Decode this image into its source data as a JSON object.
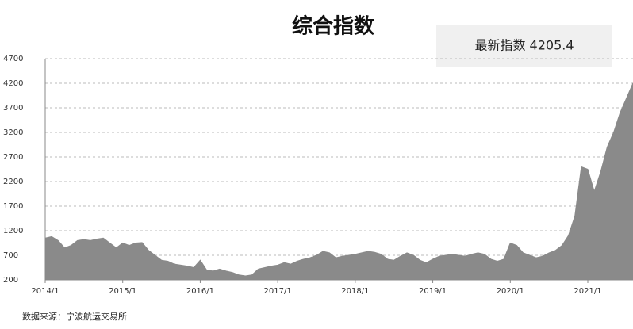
{
  "chart_data": {
    "type": "area",
    "title": "综合指数",
    "annotation": "最新指数 4205.4",
    "source": "数据来源：宁波航运交易所",
    "x": [
      "2014/1",
      "2014/2",
      "2014/3",
      "2014/4",
      "2014/5",
      "2014/6",
      "2014/7",
      "2014/8",
      "2014/9",
      "2014/10",
      "2014/11",
      "2014/12",
      "2015/1",
      "2015/2",
      "2015/3",
      "2015/4",
      "2015/5",
      "2015/6",
      "2015/7",
      "2015/8",
      "2015/9",
      "2015/10",
      "2015/11",
      "2015/12",
      "2016/1",
      "2016/2",
      "2016/3",
      "2016/4",
      "2016/5",
      "2016/6",
      "2016/7",
      "2016/8",
      "2016/9",
      "2016/10",
      "2016/11",
      "2016/12",
      "2017/1",
      "2017/2",
      "2017/3",
      "2017/4",
      "2017/5",
      "2017/6",
      "2017/7",
      "2017/8",
      "2017/9",
      "2017/10",
      "2017/11",
      "2017/12",
      "2018/1",
      "2018/2",
      "2018/3",
      "2018/4",
      "2018/5",
      "2018/6",
      "2018/7",
      "2018/8",
      "2018/9",
      "2018/10",
      "2018/11",
      "2018/12",
      "2019/1",
      "2019/2",
      "2019/3",
      "2019/4",
      "2019/5",
      "2019/6",
      "2019/7",
      "2019/8",
      "2019/9",
      "2019/10",
      "2019/11",
      "2019/12",
      "2020/1",
      "2020/2",
      "2020/3",
      "2020/4",
      "2020/5",
      "2020/6",
      "2020/7",
      "2020/8",
      "2020/9",
      "2020/10",
      "2020/11",
      "2020/12",
      "2021/1",
      "2021/2",
      "2021/3",
      "2021/4",
      "2021/5",
      "2021/6",
      "2021/7",
      "2021/8"
    ],
    "series": [
      {
        "color": "#8a8a8a",
        "values": [
          1050,
          1080,
          1000,
          850,
          900,
          1000,
          1020,
          1000,
          1030,
          1050,
          950,
          850,
          950,
          900,
          950,
          960,
          800,
          700,
          600,
          580,
          520,
          500,
          480,
          450,
          600,
          400,
          380,
          420,
          380,
          350,
          300,
          280,
          300,
          420,
          450,
          480,
          500,
          550,
          520,
          580,
          620,
          650,
          700,
          780,
          750,
          650,
          680,
          700,
          720,
          750,
          780,
          760,
          720,
          620,
          600,
          680,
          750,
          700,
          600,
          550,
          620,
          680,
          700,
          720,
          700,
          680,
          720,
          750,
          720,
          620,
          580,
          620,
          950,
          900,
          750,
          700,
          650,
          680,
          750,
          800,
          900,
          1100,
          1500,
          2500,
          2450,
          2000,
          2400,
          2900,
          3200,
          3600,
          3900,
          4205.4
        ]
      }
    ],
    "xlim": [
      "2014/1",
      "2021/8"
    ],
    "xticks": [
      "2014/1",
      "2015/1",
      "2016/1",
      "2017/1",
      "2018/1",
      "2019/1",
      "2020/1",
      "2021/1"
    ],
    "ylim": [
      200,
      4700
    ],
    "yticks": [
      200,
      700,
      1200,
      1700,
      2200,
      2700,
      3200,
      3700,
      4200,
      4700
    ],
    "grid": true
  }
}
